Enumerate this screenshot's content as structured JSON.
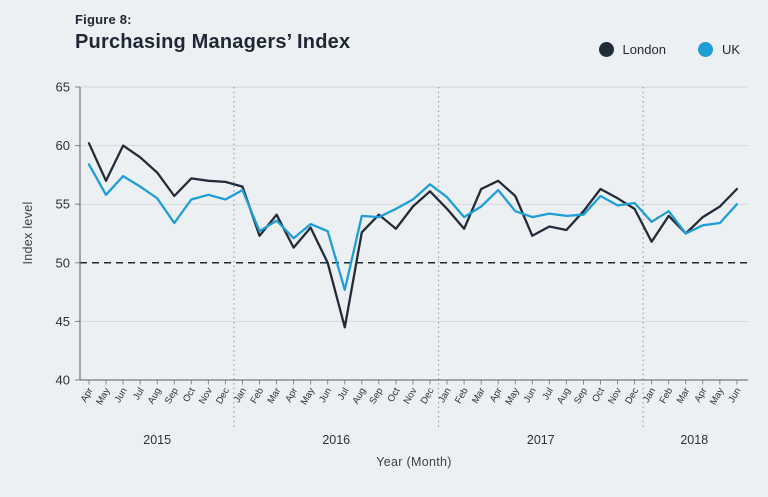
{
  "header": {
    "figure_label": "Figure 8:",
    "title": "Purchasing Managers’ Index"
  },
  "axes": {
    "ylabel": "Index level",
    "xlabel": "Year (Month)"
  },
  "legend": [
    {
      "label": "London",
      "color": "#222c38"
    },
    {
      "label": "UK",
      "color": "#1d9fd6"
    }
  ],
  "colors": {
    "background": "#edf0f3",
    "gridline": "#d4d9dd",
    "axis": "#565c63",
    "tick": "#7d838a",
    "baseline": "#1e2733",
    "year_separator": "#969ca2",
    "text": "#2a323c"
  },
  "chart_data": {
    "type": "line",
    "title": "Purchasing Managers’ Index",
    "xlabel": "Year (Month)",
    "ylabel": "Index level",
    "ylim": [
      40,
      65
    ],
    "yticks": [
      40,
      45,
      50,
      55,
      60,
      65
    ],
    "baseline": 50,
    "grid": true,
    "legend_position": "top-right",
    "months": [
      "Apr",
      "May",
      "Jun",
      "Jul",
      "Aug",
      "Sep",
      "Oct",
      "Nov",
      "Dec",
      "Jan",
      "Feb",
      "Mar",
      "Apr",
      "May",
      "Jun",
      "Jul",
      "Aug",
      "Sep",
      "Oct",
      "Nov",
      "Dec",
      "Jan",
      "Feb",
      "Mar",
      "Apr",
      "May",
      "Jun",
      "Jul",
      "Aug",
      "Sep",
      "Oct",
      "Nov",
      "Dec",
      "Jan",
      "Feb",
      "Mar",
      "Apr",
      "May",
      "Jun"
    ],
    "years": [
      {
        "label": "2015",
        "start": 0,
        "count": 9
      },
      {
        "label": "2016",
        "start": 9,
        "count": 12
      },
      {
        "label": "2017",
        "start": 21,
        "count": 12
      },
      {
        "label": "2018",
        "start": 33,
        "count": 6
      }
    ],
    "series": [
      {
        "name": "London",
        "color": "#222c38",
        "values": [
          60.2,
          57.0,
          60.0,
          59.0,
          57.7,
          55.7,
          57.2,
          57.0,
          56.9,
          56.5,
          52.3,
          54.1,
          51.3,
          53.0,
          50.0,
          44.5,
          52.6,
          54.1,
          52.9,
          54.8,
          56.1,
          54.6,
          52.9,
          56.3,
          57.0,
          55.7,
          52.3,
          53.1,
          52.8,
          54.4,
          56.3,
          55.5,
          54.6,
          51.8,
          54.0,
          52.5,
          53.9,
          54.8,
          56.3
        ]
      },
      {
        "name": "UK",
        "color": "#1d9fd6",
        "values": [
          58.4,
          55.8,
          57.4,
          56.5,
          55.5,
          53.4,
          55.4,
          55.8,
          55.4,
          56.2,
          52.7,
          53.6,
          52.1,
          53.3,
          52.7,
          47.7,
          54.0,
          53.9,
          54.6,
          55.4,
          56.7,
          55.6,
          53.9,
          54.8,
          56.2,
          54.4,
          53.9,
          54.2,
          54.0,
          54.1,
          55.7,
          54.9,
          55.1,
          53.5,
          54.4,
          52.5,
          53.2,
          53.4,
          55.0
        ]
      }
    ]
  }
}
